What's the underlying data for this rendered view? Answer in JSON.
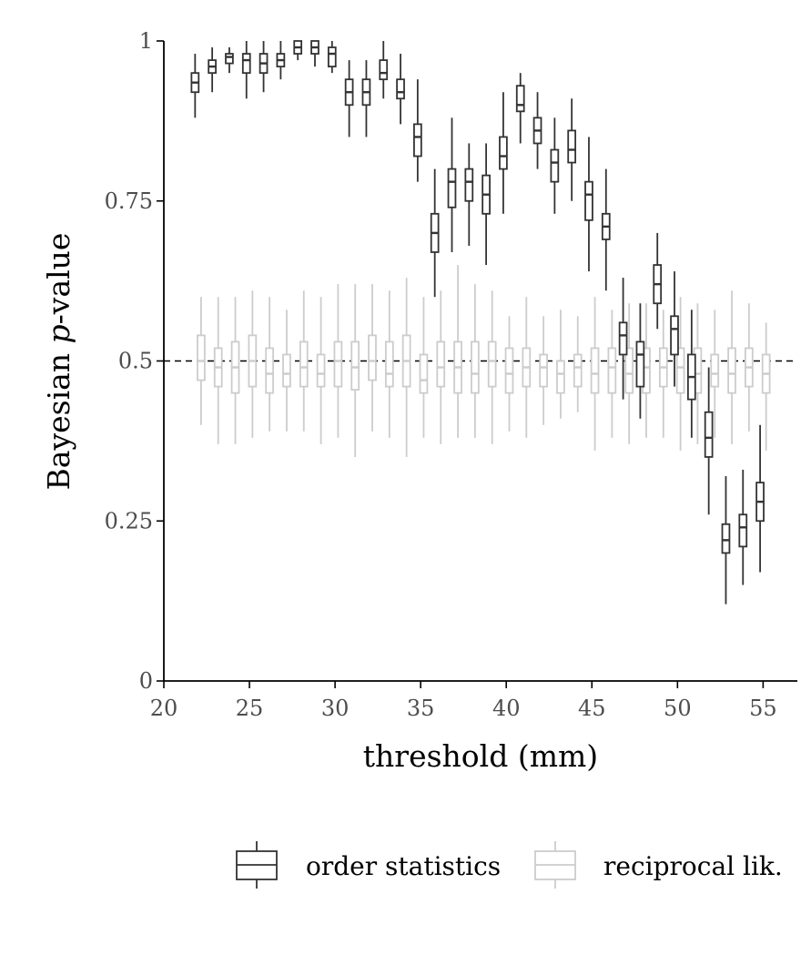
{
  "chart_data": {
    "type": "boxplot",
    "title": "",
    "xlabel": "threshold (mm)",
    "ylabel_prefix": "Bayesian ",
    "ylabel_italic": "p",
    "ylabel_suffix": "-value",
    "xlim": [
      20,
      57
    ],
    "ylim": [
      0,
      1
    ],
    "x_ticks": [
      20,
      25,
      30,
      35,
      40,
      45,
      50,
      55
    ],
    "y_ticks": [
      0,
      0.25,
      0.5,
      0.75,
      1
    ],
    "y_tick_labels": [
      "0",
      "0.25",
      "0.5",
      "0.75",
      "1"
    ],
    "reference_line": 0.5,
    "grid": false,
    "legend_position": "bottom",
    "series": [
      {
        "name": "order statistics",
        "color": "#333333",
        "boxes": [
          {
            "x": 22,
            "min": 0.88,
            "q1": 0.92,
            "median": 0.935,
            "q3": 0.95,
            "max": 0.98
          },
          {
            "x": 23,
            "min": 0.92,
            "q1": 0.95,
            "median": 0.96,
            "q3": 0.97,
            "max": 0.99
          },
          {
            "x": 24,
            "min": 0.95,
            "q1": 0.965,
            "median": 0.975,
            "q3": 0.98,
            "max": 0.99
          },
          {
            "x": 25,
            "min": 0.91,
            "q1": 0.95,
            "median": 0.97,
            "q3": 0.98,
            "max": 1.0
          },
          {
            "x": 26,
            "min": 0.92,
            "q1": 0.95,
            "median": 0.965,
            "q3": 0.98,
            "max": 1.0
          },
          {
            "x": 27,
            "min": 0.94,
            "q1": 0.96,
            "median": 0.97,
            "q3": 0.98,
            "max": 1.0
          },
          {
            "x": 28,
            "min": 0.97,
            "q1": 0.98,
            "median": 0.99,
            "q3": 1.0,
            "max": 1.0
          },
          {
            "x": 29,
            "min": 0.96,
            "q1": 0.98,
            "median": 0.99,
            "q3": 1.0,
            "max": 1.0
          },
          {
            "x": 30,
            "min": 0.95,
            "q1": 0.96,
            "median": 0.98,
            "q3": 0.99,
            "max": 1.0
          },
          {
            "x": 31,
            "min": 0.85,
            "q1": 0.9,
            "median": 0.92,
            "q3": 0.94,
            "max": 0.97
          },
          {
            "x": 32,
            "min": 0.85,
            "q1": 0.9,
            "median": 0.92,
            "q3": 0.94,
            "max": 0.97
          },
          {
            "x": 33,
            "min": 0.91,
            "q1": 0.94,
            "median": 0.95,
            "q3": 0.97,
            "max": 1.0
          },
          {
            "x": 34,
            "min": 0.87,
            "q1": 0.91,
            "median": 0.92,
            "q3": 0.94,
            "max": 0.98
          },
          {
            "x": 35,
            "min": 0.78,
            "q1": 0.82,
            "median": 0.85,
            "q3": 0.87,
            "max": 0.94
          },
          {
            "x": 36,
            "min": 0.6,
            "q1": 0.67,
            "median": 0.7,
            "q3": 0.73,
            "max": 0.8
          },
          {
            "x": 37,
            "min": 0.67,
            "q1": 0.74,
            "median": 0.78,
            "q3": 0.8,
            "max": 0.88
          },
          {
            "x": 38,
            "min": 0.68,
            "q1": 0.75,
            "median": 0.78,
            "q3": 0.8,
            "max": 0.84
          },
          {
            "x": 39,
            "min": 0.65,
            "q1": 0.73,
            "median": 0.76,
            "q3": 0.79,
            "max": 0.84
          },
          {
            "x": 40,
            "min": 0.73,
            "q1": 0.8,
            "median": 0.82,
            "q3": 0.85,
            "max": 0.92
          },
          {
            "x": 41,
            "min": 0.84,
            "q1": 0.89,
            "median": 0.9,
            "q3": 0.93,
            "max": 0.95
          },
          {
            "x": 42,
            "min": 0.8,
            "q1": 0.84,
            "median": 0.86,
            "q3": 0.88,
            "max": 0.92
          },
          {
            "x": 43,
            "min": 0.73,
            "q1": 0.78,
            "median": 0.81,
            "q3": 0.83,
            "max": 0.88
          },
          {
            "x": 44,
            "min": 0.75,
            "q1": 0.81,
            "median": 0.83,
            "q3": 0.86,
            "max": 0.91
          },
          {
            "x": 45,
            "min": 0.64,
            "q1": 0.72,
            "median": 0.76,
            "q3": 0.78,
            "max": 0.85
          },
          {
            "x": 46,
            "min": 0.61,
            "q1": 0.69,
            "median": 0.71,
            "q3": 0.73,
            "max": 0.8
          },
          {
            "x": 47,
            "min": 0.44,
            "q1": 0.51,
            "median": 0.54,
            "q3": 0.56,
            "max": 0.63
          },
          {
            "x": 48,
            "min": 0.41,
            "q1": 0.46,
            "median": 0.51,
            "q3": 0.53,
            "max": 0.59
          },
          {
            "x": 49,
            "min": 0.55,
            "q1": 0.59,
            "median": 0.62,
            "q3": 0.65,
            "max": 0.7
          },
          {
            "x": 50,
            "min": 0.46,
            "q1": 0.51,
            "median": 0.55,
            "q3": 0.57,
            "max": 0.64
          },
          {
            "x": 51,
            "min": 0.38,
            "q1": 0.44,
            "median": 0.475,
            "q3": 0.51,
            "max": 0.58
          },
          {
            "x": 52,
            "min": 0.26,
            "q1": 0.35,
            "median": 0.38,
            "q3": 0.42,
            "max": 0.49
          },
          {
            "x": 53,
            "min": 0.12,
            "q1": 0.2,
            "median": 0.22,
            "q3": 0.245,
            "max": 0.32
          },
          {
            "x": 54,
            "min": 0.15,
            "q1": 0.21,
            "median": 0.24,
            "q3": 0.26,
            "max": 0.33
          },
          {
            "x": 55,
            "min": 0.17,
            "q1": 0.25,
            "median": 0.28,
            "q3": 0.31,
            "max": 0.4
          }
        ]
      },
      {
        "name": "reciprocal lik.",
        "color": "#cccccc",
        "boxes": [
          {
            "x": 22,
            "min": 0.4,
            "q1": 0.47,
            "median": 0.5,
            "q3": 0.54,
            "max": 0.6
          },
          {
            "x": 23,
            "min": 0.37,
            "q1": 0.46,
            "median": 0.49,
            "q3": 0.52,
            "max": 0.6
          },
          {
            "x": 24,
            "min": 0.37,
            "q1": 0.45,
            "median": 0.49,
            "q3": 0.53,
            "max": 0.6
          },
          {
            "x": 25,
            "min": 0.38,
            "q1": 0.46,
            "median": 0.5,
            "q3": 0.54,
            "max": 0.61
          },
          {
            "x": 26,
            "min": 0.39,
            "q1": 0.45,
            "median": 0.48,
            "q3": 0.52,
            "max": 0.6
          },
          {
            "x": 27,
            "min": 0.39,
            "q1": 0.46,
            "median": 0.48,
            "q3": 0.51,
            "max": 0.58
          },
          {
            "x": 28,
            "min": 0.39,
            "q1": 0.46,
            "median": 0.49,
            "q3": 0.53,
            "max": 0.61
          },
          {
            "x": 29,
            "min": 0.37,
            "q1": 0.46,
            "median": 0.48,
            "q3": 0.51,
            "max": 0.6
          },
          {
            "x": 30,
            "min": 0.38,
            "q1": 0.46,
            "median": 0.5,
            "q3": 0.53,
            "max": 0.62
          },
          {
            "x": 31,
            "min": 0.35,
            "q1": 0.455,
            "median": 0.49,
            "q3": 0.53,
            "max": 0.62
          },
          {
            "x": 32,
            "min": 0.39,
            "q1": 0.47,
            "median": 0.5,
            "q3": 0.54,
            "max": 0.62
          },
          {
            "x": 33,
            "min": 0.38,
            "q1": 0.46,
            "median": 0.48,
            "q3": 0.53,
            "max": 0.61
          },
          {
            "x": 34,
            "min": 0.35,
            "q1": 0.46,
            "median": 0.5,
            "q3": 0.54,
            "max": 0.63
          },
          {
            "x": 35,
            "min": 0.38,
            "q1": 0.45,
            "median": 0.47,
            "q3": 0.51,
            "max": 0.6
          },
          {
            "x": 36,
            "min": 0.37,
            "q1": 0.46,
            "median": 0.49,
            "q3": 0.53,
            "max": 0.61
          },
          {
            "x": 37,
            "min": 0.38,
            "q1": 0.45,
            "median": 0.49,
            "q3": 0.53,
            "max": 0.65
          },
          {
            "x": 38,
            "min": 0.38,
            "q1": 0.45,
            "median": 0.48,
            "q3": 0.53,
            "max": 0.62
          },
          {
            "x": 39,
            "min": 0.37,
            "q1": 0.46,
            "median": 0.5,
            "q3": 0.53,
            "max": 0.61
          },
          {
            "x": 40,
            "min": 0.39,
            "q1": 0.45,
            "median": 0.48,
            "q3": 0.52,
            "max": 0.57
          },
          {
            "x": 41,
            "min": 0.38,
            "q1": 0.46,
            "median": 0.49,
            "q3": 0.52,
            "max": 0.6
          },
          {
            "x": 42,
            "min": 0.4,
            "q1": 0.46,
            "median": 0.49,
            "q3": 0.51,
            "max": 0.57
          },
          {
            "x": 43,
            "min": 0.41,
            "q1": 0.45,
            "median": 0.48,
            "q3": 0.5,
            "max": 0.58
          },
          {
            "x": 44,
            "min": 0.42,
            "q1": 0.46,
            "median": 0.49,
            "q3": 0.51,
            "max": 0.57
          },
          {
            "x": 45,
            "min": 0.36,
            "q1": 0.45,
            "median": 0.48,
            "q3": 0.52,
            "max": 0.6
          },
          {
            "x": 46,
            "min": 0.38,
            "q1": 0.45,
            "median": 0.49,
            "q3": 0.52,
            "max": 0.58
          },
          {
            "x": 47,
            "min": 0.37,
            "q1": 0.45,
            "median": 0.48,
            "q3": 0.52,
            "max": 0.59
          },
          {
            "x": 48,
            "min": 0.38,
            "q1": 0.45,
            "median": 0.49,
            "q3": 0.52,
            "max": 0.59
          },
          {
            "x": 49,
            "min": 0.38,
            "q1": 0.46,
            "median": 0.49,
            "q3": 0.52,
            "max": 0.58
          },
          {
            "x": 50,
            "min": 0.36,
            "q1": 0.45,
            "median": 0.49,
            "q3": 0.52,
            "max": 0.6
          },
          {
            "x": 51,
            "min": 0.37,
            "q1": 0.45,
            "median": 0.48,
            "q3": 0.52,
            "max": 0.59
          },
          {
            "x": 52,
            "min": 0.38,
            "q1": 0.46,
            "median": 0.48,
            "q3": 0.51,
            "max": 0.58
          },
          {
            "x": 53,
            "min": 0.37,
            "q1": 0.45,
            "median": 0.48,
            "q3": 0.52,
            "max": 0.61
          },
          {
            "x": 54,
            "min": 0.39,
            "q1": 0.46,
            "median": 0.49,
            "q3": 0.52,
            "max": 0.59
          },
          {
            "x": 55,
            "min": 0.36,
            "q1": 0.45,
            "median": 0.48,
            "q3": 0.51,
            "max": 0.56
          }
        ]
      }
    ]
  }
}
